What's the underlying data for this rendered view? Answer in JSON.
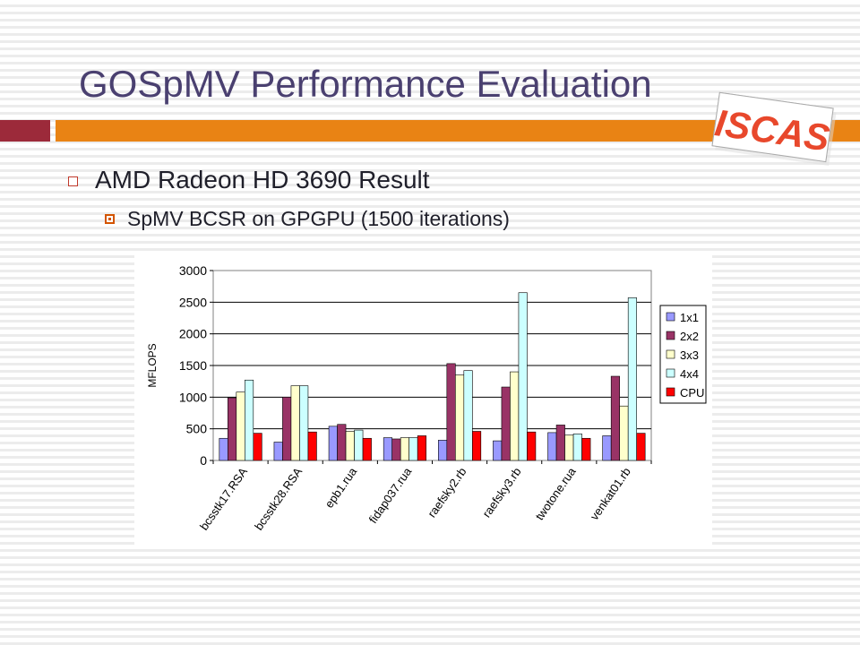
{
  "slide": {
    "title": "GOSpMV Performance Evaluation",
    "bullet1": "AMD Radeon HD 3690 Result",
    "bullet2": "SpMV BCSR on GPGPU (1500 iterations)",
    "logo_text": "ISCAS"
  },
  "chart_data": {
    "type": "bar",
    "title": "",
    "xlabel": "",
    "ylabel": "MFLOPS",
    "ylim": [
      0,
      3000
    ],
    "yticks": [
      0,
      500,
      1000,
      1500,
      2000,
      2500,
      3000
    ],
    "grid": true,
    "legend_position": "right",
    "categories": [
      "bcsstk17.RSA",
      "bcsstk28.RSA",
      "epb1.rua",
      "fidap037.rua",
      "raefsky2.rb",
      "raefsky3.rb",
      "twotone.rua",
      "venkat01.rb"
    ],
    "series": [
      {
        "name": "1x1",
        "color": "#9999ff",
        "values": [
          350,
          290,
          540,
          360,
          320,
          310,
          440,
          390
        ]
      },
      {
        "name": "2x2",
        "color": "#993366",
        "values": [
          990,
          1000,
          570,
          340,
          1530,
          1160,
          560,
          1330
        ]
      },
      {
        "name": "3x3",
        "color": "#ffffcc",
        "values": [
          1080,
          1180,
          460,
          360,
          1350,
          1400,
          400,
          860
        ]
      },
      {
        "name": "4x4",
        "color": "#ccffff",
        "values": [
          1270,
          1180,
          480,
          360,
          1420,
          2650,
          420,
          2570
        ]
      },
      {
        "name": "CPU",
        "color": "#ff0000",
        "values": [
          430,
          450,
          350,
          390,
          460,
          450,
          350,
          430
        ]
      }
    ]
  }
}
